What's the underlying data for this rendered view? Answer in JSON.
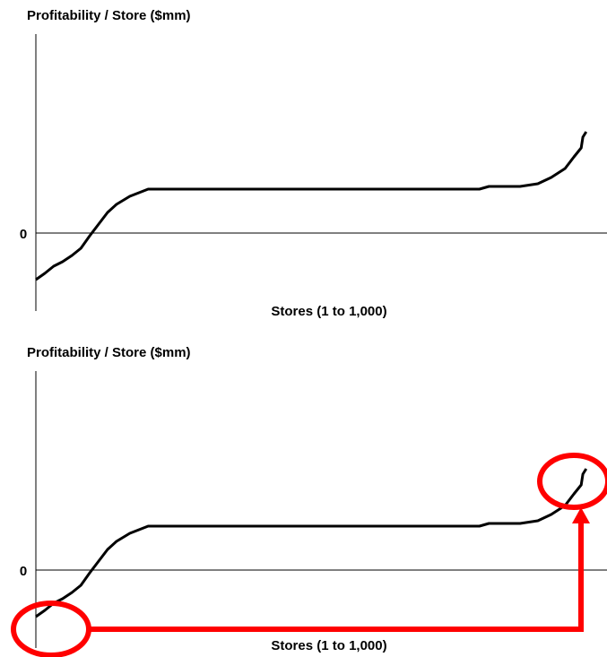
{
  "chart_data": [
    {
      "type": "line",
      "title": "Profitability / Store ($mm)",
      "x_label": "Stores (1 to 1,000)",
      "xlim": [
        0,
        1000
      ],
      "ylim": [
        -8.7,
        22.2
      ],
      "yticks": [
        0
      ],
      "x": [
        0,
        16,
        32,
        48,
        65,
        81,
        97,
        113,
        129,
        145,
        169,
        202,
        419,
        798,
        815,
        871,
        903,
        927,
        952,
        968,
        981,
        984,
        990
      ],
      "series": [
        {
          "color": "#000000",
          "values": [
            -5.2,
            -4.5,
            -3.7,
            -3.2,
            -2.5,
            -1.7,
            -0.3,
            1.0,
            2.3,
            3.2,
            4.1,
            4.9,
            4.9,
            4.9,
            5.2,
            5.2,
            5.5,
            6.2,
            7.2,
            8.5,
            9.5,
            10.7,
            11.3
          ]
        }
      ]
    },
    {
      "type": "line",
      "title": "Profitability / Store ($mm)",
      "x_label": "Stores (1 to 1,000)",
      "xlim": [
        0,
        1000
      ],
      "ylim": [
        -8.7,
        22.2
      ],
      "yticks": [
        0
      ],
      "x": [
        0,
        16,
        32,
        48,
        65,
        81,
        97,
        113,
        129,
        145,
        169,
        202,
        419,
        798,
        815,
        871,
        903,
        927,
        952,
        968,
        981,
        984,
        990
      ],
      "series": [
        {
          "color": "#000000",
          "values": [
            -5.2,
            -4.5,
            -3.7,
            -3.2,
            -2.5,
            -1.7,
            -0.3,
            1.0,
            2.3,
            3.2,
            4.1,
            4.9,
            4.9,
            4.9,
            5.2,
            5.2,
            5.5,
            6.2,
            7.2,
            8.5,
            9.5,
            10.7,
            11.3
          ]
        }
      ]
    }
  ]
}
